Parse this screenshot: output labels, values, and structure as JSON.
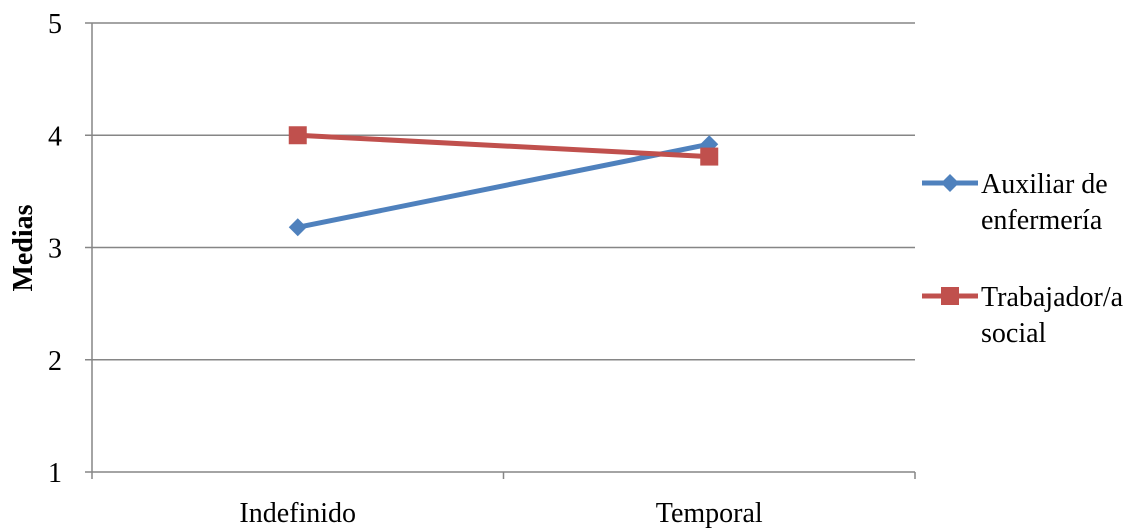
{
  "chart_data": {
    "type": "line",
    "title": "",
    "xlabel": "",
    "ylabel": "Medias",
    "categories": [
      "Indefinido",
      "Temporal"
    ],
    "ylim": [
      1,
      5
    ],
    "yticks": [
      1,
      2,
      3,
      4,
      5
    ],
    "grid": true,
    "legend_position": "right",
    "series": [
      {
        "name_lines": [
          "Auxiliar de",
          "enfermería"
        ],
        "values": [
          3.18,
          3.92
        ],
        "color": "#4F81BD",
        "marker": "diamond"
      },
      {
        "name_lines": [
          "Trabajador/a",
          "social"
        ],
        "values": [
          4.0,
          3.81
        ],
        "color": "#C0504D",
        "marker": "square"
      }
    ]
  }
}
